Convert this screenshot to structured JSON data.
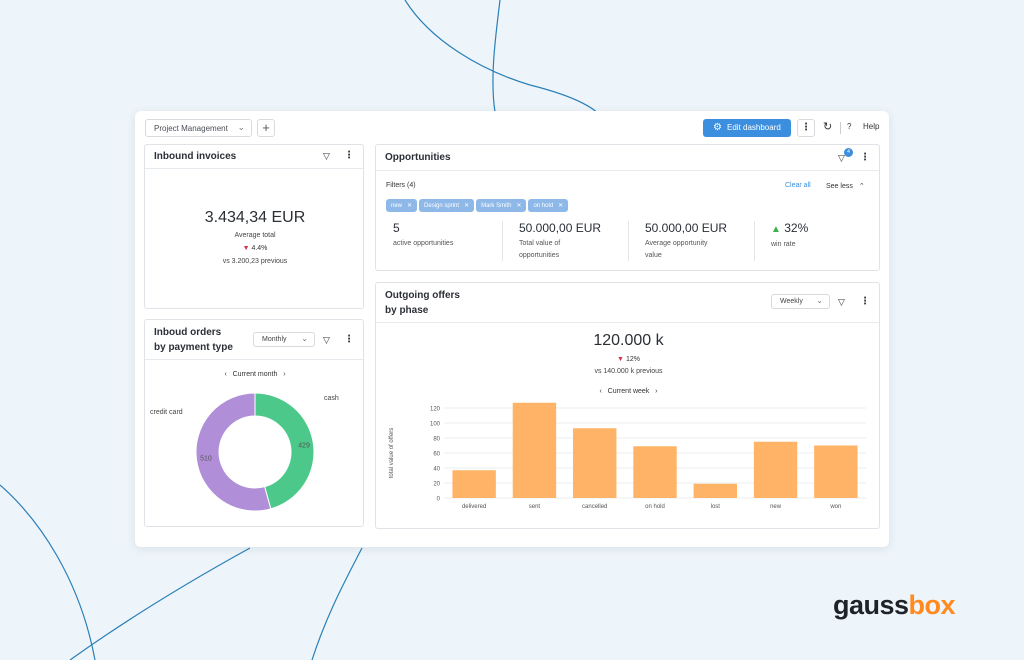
{
  "toolbar": {
    "project_select": "Project Management",
    "add_label": "+",
    "edit_dashboard": "Edit dashboard",
    "help_label": "Help"
  },
  "inbound_invoices": {
    "title": "Inbound invoices",
    "total": "3.434,34 EUR",
    "total_label": "Average total",
    "delta": "4.4%",
    "previous": "vs 3.200,23 previous"
  },
  "inbound_orders": {
    "title_line1": "Inboud orders",
    "title_line2": "by payment type",
    "period_select": "Monthly",
    "nav_label": "Current month",
    "slices": [
      {
        "label": "cash",
        "value": 429,
        "color": "#4cc98a"
      },
      {
        "label": "credit card",
        "value": 510,
        "color": "#b08fd8"
      }
    ]
  },
  "opportunities": {
    "title": "Opportunities",
    "filter_badge": "4",
    "filters_label": "Filters (4)",
    "clear_all": "Clear all",
    "see_less": "See less",
    "chips": [
      "new",
      "Design sprint",
      "Mark Smith",
      "on hold"
    ],
    "kpis": [
      {
        "value": "5",
        "label1": "active opportunities",
        "label2": ""
      },
      {
        "value": "50.000,00 EUR",
        "label1": "Total value of",
        "label2": "opportunities"
      },
      {
        "value": "50.000,00 EUR",
        "label1": "Average opportunity",
        "label2": "value"
      },
      {
        "value": "32%",
        "label1": "win rate",
        "label2": ""
      }
    ]
  },
  "outgoing_offers": {
    "title_line1": "Outgoing offers",
    "title_line2": "by phase",
    "period_select": "Weekly",
    "total": "120.000 k",
    "delta": "12%",
    "previous": "vs 140.000 k previous",
    "nav_label": "Current week"
  },
  "chart_data": {
    "type": "bar",
    "categories": [
      "delivered",
      "sent",
      "cancelled",
      "on hold",
      "lost",
      "new",
      "won"
    ],
    "values": [
      37,
      127,
      93,
      69,
      19,
      75,
      70
    ],
    "ylabel": "total value of offers",
    "xlabel": "",
    "ylim": [
      0,
      120
    ],
    "yticks": [
      0,
      20,
      40,
      60,
      80,
      100,
      120
    ],
    "bar_color": "#ffb366",
    "grid": true
  },
  "brand": {
    "name_part1": "gauss",
    "name_part2": "box",
    "accent": "#ff8a1f"
  }
}
